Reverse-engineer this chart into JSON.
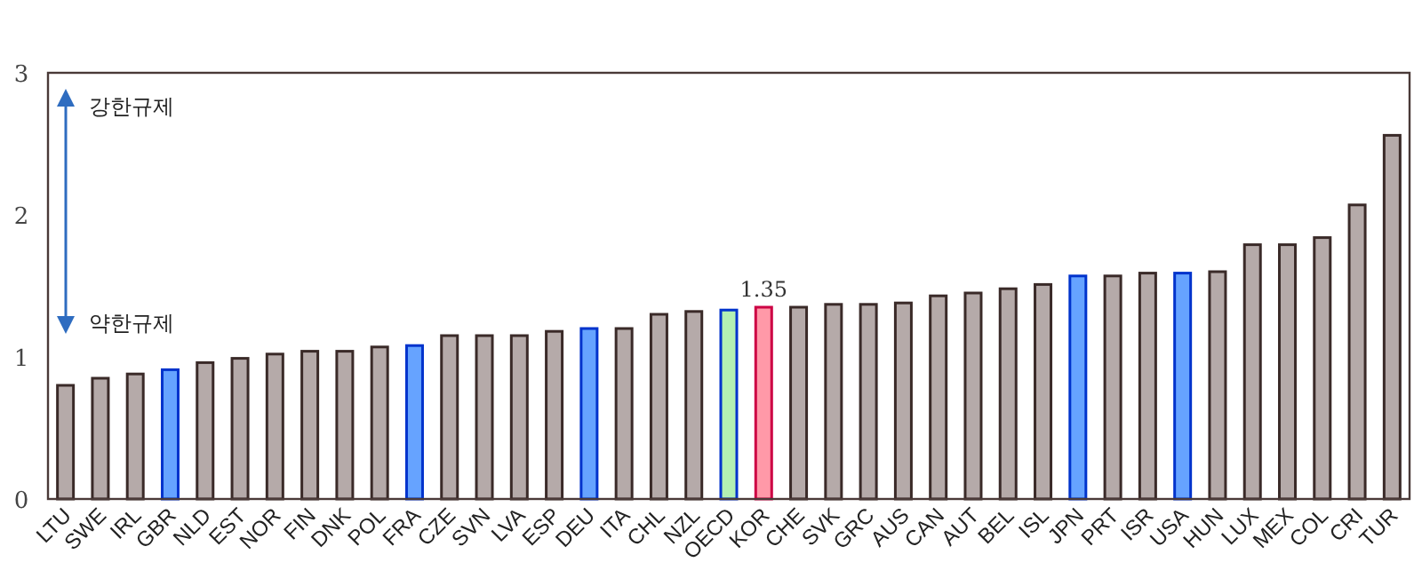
{
  "chart_data": {
    "type": "bar",
    "categories": [
      "LTU",
      "SWE",
      "IRL",
      "GBR",
      "NLD",
      "EST",
      "NOR",
      "FIN",
      "DNK",
      "POL",
      "FRA",
      "CZE",
      "SVN",
      "LVA",
      "ESP",
      "DEU",
      "ITA",
      "CHL",
      "NZL",
      "OECD",
      "KOR",
      "CHE",
      "SVK",
      "GRC",
      "AUS",
      "CAN",
      "AUT",
      "BEL",
      "ISL",
      "JPN",
      "PRT",
      "ISR",
      "USA",
      "HUN",
      "LUX",
      "MEX",
      "COL",
      "CRI",
      "TUR"
    ],
    "values": [
      0.8,
      0.85,
      0.88,
      0.91,
      0.96,
      0.99,
      1.02,
      1.04,
      1.04,
      1.07,
      1.08,
      1.15,
      1.15,
      1.15,
      1.18,
      1.2,
      1.2,
      1.3,
      1.32,
      1.33,
      1.35,
      1.35,
      1.37,
      1.37,
      1.38,
      1.43,
      1.45,
      1.48,
      1.51,
      1.57,
      1.57,
      1.59,
      1.59,
      1.6,
      1.79,
      1.79,
      1.84,
      2.07,
      2.56
    ],
    "colors": [
      "#b5aaa9",
      "#b5aaa9",
      "#b5aaa9",
      "#66a3ff",
      "#b5aaa9",
      "#b5aaa9",
      "#b5aaa9",
      "#b5aaa9",
      "#b5aaa9",
      "#b5aaa9",
      "#66a3ff",
      "#b5aaa9",
      "#b5aaa9",
      "#b5aaa9",
      "#b5aaa9",
      "#66a3ff",
      "#b5aaa9",
      "#b5aaa9",
      "#b5aaa9",
      "#b3f0b3",
      "#ff99a8",
      "#b5aaa9",
      "#b5aaa9",
      "#b5aaa9",
      "#b5aaa9",
      "#b5aaa9",
      "#b5aaa9",
      "#b5aaa9",
      "#b5aaa9",
      "#66a3ff",
      "#b5aaa9",
      "#b5aaa9",
      "#66a3ff",
      "#b5aaa9",
      "#b5aaa9",
      "#b5aaa9",
      "#b5aaa9",
      "#b5aaa9",
      "#b5aaa9"
    ],
    "value_labels": [
      null,
      null,
      null,
      null,
      null,
      null,
      null,
      null,
      null,
      null,
      null,
      null,
      null,
      null,
      null,
      null,
      null,
      null,
      null,
      null,
      "1.35",
      null,
      null,
      null,
      null,
      null,
      null,
      null,
      null,
      null,
      null,
      null,
      null,
      null,
      null,
      null,
      null,
      null,
      null
    ],
    "ylim": [
      0,
      3
    ],
    "yticks": [
      0,
      1,
      2,
      3
    ],
    "grid": false,
    "annotations": [
      "강한규제",
      "약한규제"
    ]
  }
}
